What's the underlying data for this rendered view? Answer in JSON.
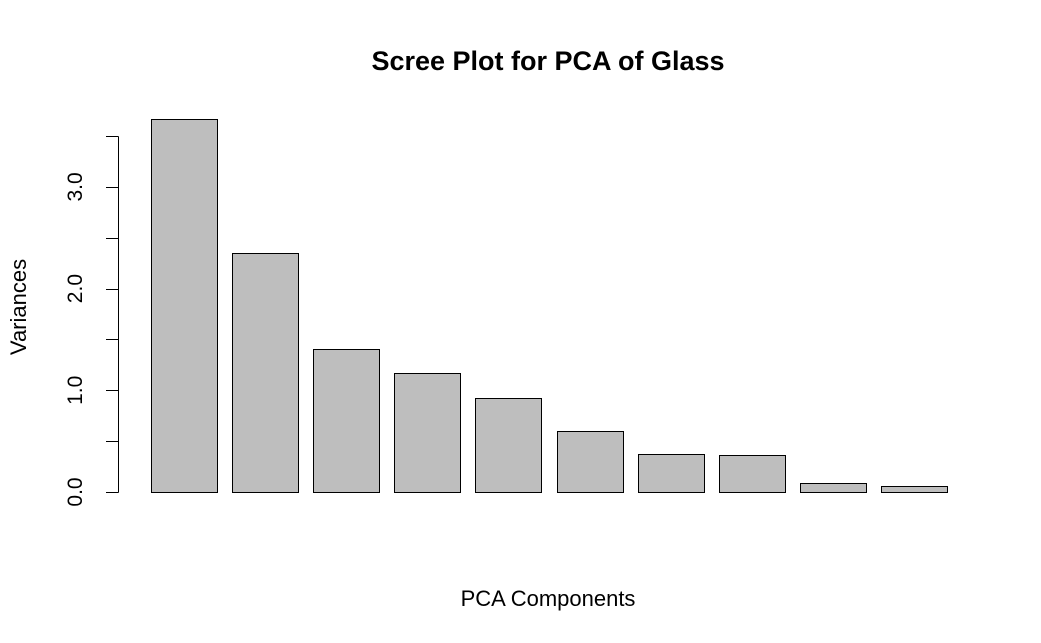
{
  "chart_data": {
    "type": "bar",
    "title": "Scree Plot for PCA of Glass",
    "xlabel": "PCA Components",
    "ylabel": "Variances",
    "categories": [
      "",
      "",
      "",
      "",
      "",
      "",
      "",
      "",
      "",
      ""
    ],
    "values": [
      3.67,
      2.35,
      1.41,
      1.17,
      0.92,
      0.6,
      0.37,
      0.36,
      0.09,
      0.06
    ],
    "ylim": [
      0,
      3.5
    ],
    "yticks_minor": [
      0,
      0.5,
      1.0,
      1.5,
      2.0,
      2.5,
      3.0,
      3.5
    ],
    "ytick_labels": [
      {
        "value": 0.0,
        "label": "0.0"
      },
      {
        "value": 1.0,
        "label": "1.0"
      },
      {
        "value": 2.0,
        "label": "2.0"
      },
      {
        "value": 3.0,
        "label": "3.0"
      }
    ],
    "grid": false,
    "legend": "none",
    "bar_fill": "#bebebe",
    "bar_edge": "#000000"
  }
}
